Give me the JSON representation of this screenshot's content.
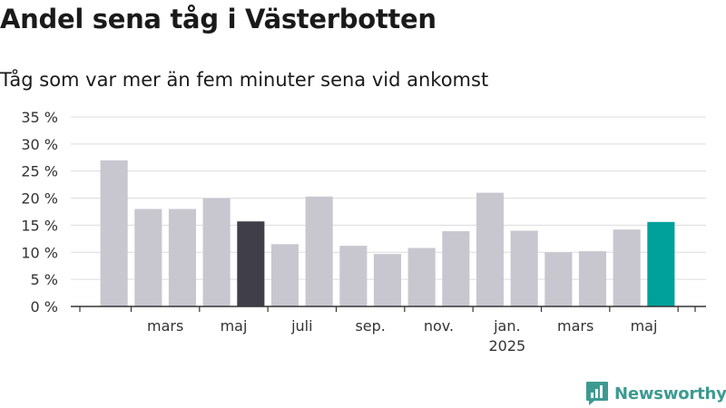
{
  "chart_data": {
    "type": "bar",
    "title": "Andel sena tåg i Västerbotten",
    "subtitle": "Tåg som var mer än fem minuter sena vid ankomst",
    "y_unit": "%",
    "ylim": [
      0,
      35
    ],
    "yticks": [
      "0 %",
      "5 %",
      "10 %",
      "15 %",
      "20 %",
      "25 %",
      "30 %",
      "35 %"
    ],
    "grid": true,
    "x_tick_labels": [
      {
        "label": "mars",
        "sub": ""
      },
      {
        "label": "maj",
        "sub": ""
      },
      {
        "label": "juli",
        "sub": ""
      },
      {
        "label": "sep.",
        "sub": ""
      },
      {
        "label": "nov.",
        "sub": ""
      },
      {
        "label": "jan.",
        "sub": "2025"
      },
      {
        "label": "mars",
        "sub": ""
      },
      {
        "label": "maj",
        "sub": ""
      }
    ],
    "categories": [
      "2024-02",
      "2024-03",
      "2024-04",
      "2024-05",
      "2024-06",
      "2024-07",
      "2024-08",
      "2024-09",
      "2024-10",
      "2024-11",
      "2024-12",
      "2025-01",
      "2025-02",
      "2025-03",
      "2025-04",
      "2025-05",
      "2025-06"
    ],
    "values": [
      27.0,
      18.0,
      18.0,
      20.0,
      15.7,
      11.5,
      20.3,
      11.2,
      9.7,
      10.8,
      13.9,
      21.0,
      14.0,
      10.0,
      10.2,
      14.2,
      15.6
    ],
    "highlight": {
      "2024-06": "#3f3e49",
      "2025-06": "#00a19a"
    },
    "default_color": "#c8c7d0"
  },
  "logo": {
    "text": "Newsworthy",
    "icon": "newsworthy-chart-icon",
    "color": "#3d9a91"
  }
}
